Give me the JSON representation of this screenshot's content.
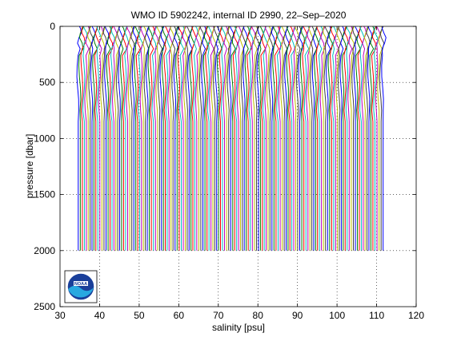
{
  "chart_data": {
    "type": "line",
    "title": "WMO ID 5902242, internal ID 2990, 22–Sep–2020",
    "xlabel": "salinity [psu]",
    "ylabel": "pressure [dbar]",
    "xlim": [
      30,
      120
    ],
    "ylim": [
      0,
      2500
    ],
    "y_reversed": true,
    "xticks": [
      30,
      40,
      50,
      60,
      70,
      80,
      90,
      100,
      110,
      120
    ],
    "yticks": [
      0,
      500,
      1000,
      1500,
      2000,
      2500
    ],
    "xtick_labels": [
      "30",
      "40",
      "50",
      "60",
      "70",
      "80",
      "90",
      "100",
      "110",
      "120"
    ],
    "ytick_labels": [
      "0",
      "500",
      "1000",
      "1500",
      "2000",
      "2500"
    ],
    "grid": true,
    "grid_style": "dotted",
    "profile_style": "waterfall of offset salinity profiles, one vertical trace per cycle, cycling colors",
    "series_colors": [
      "#0000ff",
      "#008000",
      "#ff0000",
      "#00bfbf",
      "#bf00bf",
      "#bfbf00",
      "#404040"
    ],
    "profile_count": 155,
    "first_profile_base_salinity": 34.6,
    "profile_spacing_psu": 0.5,
    "profile_pressure_range": [
      0,
      2000
    ],
    "logo": "NOAA"
  }
}
